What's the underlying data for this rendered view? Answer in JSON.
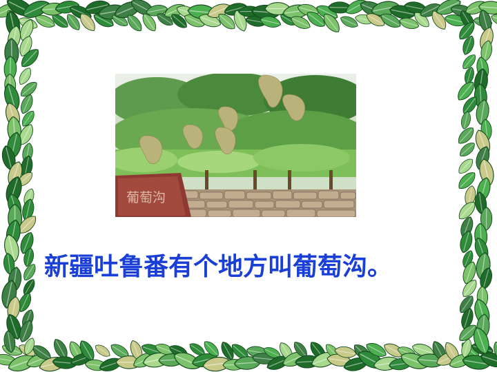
{
  "slide": {
    "caption": "新疆吐鲁番有个地方叫葡萄沟。",
    "photo": {
      "sign_text": "葡萄沟"
    }
  },
  "colors": {
    "caption": "#1a3fd6",
    "leaf_dark": "#1f6b2a",
    "leaf_light": "#8fcf7a"
  }
}
